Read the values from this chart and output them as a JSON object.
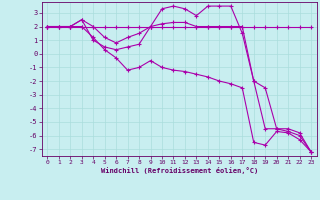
{
  "background_color": "#c8eef0",
  "line_color": "#aa00aa",
  "grid_color": "#aadddd",
  "xlabel": "Windchill (Refroidissement éolien,°C)",
  "xlabel_color": "#660066",
  "tick_color": "#660066",
  "xlim": [
    -0.5,
    23.5
  ],
  "ylim": [
    -7.5,
    3.8
  ],
  "yticks": [
    3,
    2,
    1,
    0,
    -1,
    -2,
    -3,
    -4,
    -5,
    -6,
    -7
  ],
  "xticks": [
    0,
    1,
    2,
    3,
    4,
    5,
    6,
    7,
    8,
    9,
    10,
    11,
    12,
    13,
    14,
    15,
    16,
    17,
    18,
    19,
    20,
    21,
    22,
    23
  ],
  "line1_x": [
    0,
    1,
    2,
    3,
    4,
    5,
    6,
    7,
    8,
    9,
    10,
    11,
    12,
    13,
    14,
    15,
    16,
    17,
    18,
    19,
    20,
    21,
    22,
    23
  ],
  "line1_y": [
    2.0,
    2.0,
    2.0,
    2.0,
    2.0,
    2.0,
    2.0,
    2.0,
    2.0,
    2.0,
    2.0,
    2.0,
    2.0,
    2.0,
    2.0,
    2.0,
    2.0,
    2.0,
    2.0,
    2.0,
    2.0,
    2.0,
    2.0,
    2.0
  ],
  "line2_x": [
    0,
    1,
    2,
    3,
    4,
    5,
    6,
    7,
    8,
    9,
    10,
    11,
    12,
    13,
    14,
    15,
    16,
    17,
    18,
    19,
    20,
    21,
    22,
    23
  ],
  "line2_y": [
    2.0,
    2.0,
    2.0,
    2.5,
    1.0,
    0.5,
    0.3,
    0.5,
    0.7,
    2.0,
    2.2,
    2.3,
    2.3,
    2.0,
    2.0,
    2.0,
    2.0,
    2.0,
    -2.0,
    -5.5,
    -5.5,
    -5.7,
    -6.0,
    -7.2
  ],
  "line3_x": [
    0,
    1,
    2,
    3,
    4,
    5,
    6,
    7,
    8,
    9,
    10,
    11,
    12,
    13,
    14,
    15,
    16,
    17,
    18,
    19,
    20,
    21,
    22,
    23
  ],
  "line3_y": [
    2.0,
    2.0,
    2.0,
    2.0,
    1.2,
    0.3,
    -0.3,
    -1.2,
    -1.0,
    -0.5,
    -1.0,
    -1.2,
    -1.3,
    -1.5,
    -1.7,
    -2.0,
    -2.2,
    -2.5,
    -6.5,
    -6.7,
    -5.7,
    -5.8,
    -6.3,
    -7.2
  ],
  "line4_x": [
    0,
    2,
    3,
    4,
    5,
    6,
    7,
    8,
    9,
    10,
    11,
    12,
    13,
    14,
    15,
    16,
    17,
    18,
    19,
    20,
    21,
    22,
    23
  ],
  "line4_y": [
    2.0,
    2.0,
    2.5,
    2.0,
    1.2,
    0.8,
    1.2,
    1.5,
    2.0,
    3.3,
    3.5,
    3.3,
    2.8,
    3.5,
    3.5,
    3.5,
    1.5,
    -2.0,
    -2.5,
    -5.5,
    -5.5,
    -5.8,
    -7.2
  ]
}
